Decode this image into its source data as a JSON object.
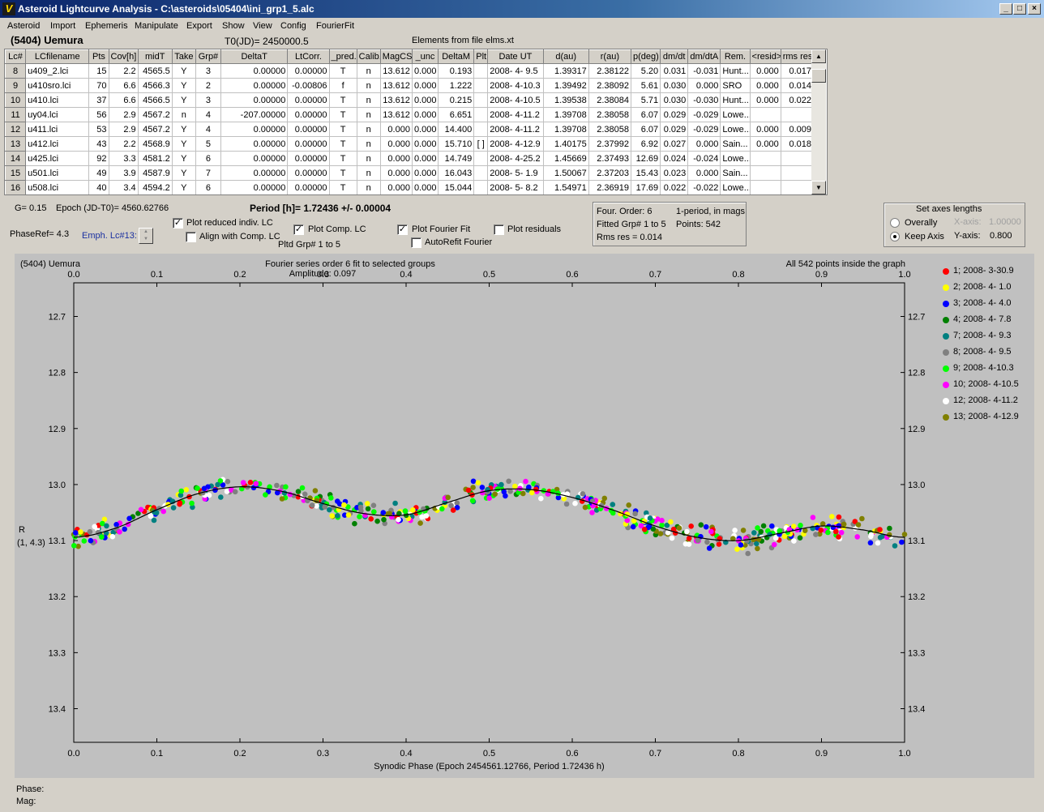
{
  "window": {
    "title": "Asteroid Lightcurve Analysis - C:\\asteroids\\05404\\ini_grp1_5.alc",
    "app_icon": "V",
    "controls": {
      "minimize": "_",
      "restore": "□",
      "close": "×"
    }
  },
  "menu": [
    "Asteroid",
    "Import",
    "Ephemeris",
    "Manipulate",
    "Export",
    "Show",
    "View",
    "Config",
    "FourierFit"
  ],
  "header": {
    "object": "(5404) Uemura",
    "t0": "T0(JD)= 2450000.5",
    "elements": "Elements from file elms.xt"
  },
  "grid": {
    "columns": [
      "Lc#",
      "LCfilename",
      "Pts",
      "Cov[h]",
      "midT",
      "Take",
      "Grp#",
      "DeltaT",
      "LtCorr.",
      "_pred.",
      "Calib.",
      "MagCS",
      "_unc",
      "DeltaM",
      "Plt",
      "Date UT",
      "d(au)",
      "r(au)",
      "p(deg)",
      "dm/dt",
      "dm/dtA",
      "Rem.",
      "<resid>",
      "rms res"
    ],
    "rows": [
      [
        "8",
        "u409_2.lci",
        "15",
        "2.2",
        "4565.5",
        "Y",
        "3",
        "0.00000",
        "0.00000",
        "T",
        "n",
        "13.612",
        "0.000",
        "0.193",
        "",
        "2008- 4- 9.5",
        "1.39317",
        "2.38122",
        "5.20",
        "0.031",
        "-0.031",
        "Hunt...",
        "0.000",
        "0.017"
      ],
      [
        "9",
        "u410sro.lci",
        "70",
        "6.6",
        "4566.3",
        "Y",
        "2",
        "0.00000",
        "-0.00806",
        "f",
        "n",
        "13.612",
        "0.000",
        "1.222",
        "",
        "2008- 4-10.3",
        "1.39492",
        "2.38092",
        "5.61",
        "0.030",
        "0.000",
        "SRO",
        "0.000",
        "0.014"
      ],
      [
        "10",
        "u410.lci",
        "37",
        "6.6",
        "4566.5",
        "Y",
        "3",
        "0.00000",
        "0.00000",
        "T",
        "n",
        "13.612",
        "0.000",
        "0.215",
        "",
        "2008- 4-10.5",
        "1.39538",
        "2.38084",
        "5.71",
        "0.030",
        "-0.030",
        "Hunt...",
        "0.000",
        "0.022"
      ],
      [
        "11",
        "uy04.lci",
        "56",
        "2.9",
        "4567.2",
        "n",
        "4",
        "-207.00000",
        "0.00000",
        "T",
        "n",
        "13.612",
        "0.000",
        "6.651",
        "",
        "2008- 4-11.2",
        "1.39708",
        "2.38058",
        "6.07",
        "0.029",
        "-0.029",
        "Lowe...",
        "",
        ""
      ],
      [
        "12",
        "u411.lci",
        "53",
        "2.9",
        "4567.2",
        "Y",
        "4",
        "0.00000",
        "0.00000",
        "T",
        "n",
        "0.000",
        "0.000",
        "14.400",
        "",
        "2008- 4-11.2",
        "1.39708",
        "2.38058",
        "6.07",
        "0.029",
        "-0.029",
        "Lowe...",
        "0.000",
        "0.009"
      ],
      [
        "13",
        "u412.lci",
        "43",
        "2.2",
        "4568.9",
        "Y",
        "5",
        "0.00000",
        "0.00000",
        "T",
        "n",
        "0.000",
        "0.000",
        "15.710",
        "[ ]",
        "2008- 4-12.9",
        "1.40175",
        "2.37992",
        "6.92",
        "0.027",
        "0.000",
        "Sain...",
        "0.000",
        "0.018"
      ],
      [
        "14",
        "u425.lci",
        "92",
        "3.3",
        "4581.2",
        "Y",
        "6",
        "0.00000",
        "0.00000",
        "T",
        "n",
        "0.000",
        "0.000",
        "14.749",
        "",
        "2008- 4-25.2",
        "1.45669",
        "2.37493",
        "12.69",
        "0.024",
        "-0.024",
        "Lowe...",
        "",
        ""
      ],
      [
        "15",
        "u501.lci",
        "49",
        "3.9",
        "4587.9",
        "Y",
        "7",
        "0.00000",
        "0.00000",
        "T",
        "n",
        "0.000",
        "0.000",
        "16.043",
        "",
        "2008- 5- 1.9",
        "1.50067",
        "2.37203",
        "15.43",
        "0.023",
        "0.000",
        "Sain...",
        "",
        ""
      ],
      [
        "16",
        "u508.lci",
        "40",
        "3.4",
        "4594.2",
        "Y",
        "6",
        "0.00000",
        "0.00000",
        "T",
        "n",
        "0.000",
        "0.000",
        "15.044",
        "",
        "2008- 5- 8.2",
        "1.54971",
        "2.36919",
        "17.69",
        "0.022",
        "-0.022",
        "Lowe...",
        "",
        ""
      ]
    ]
  },
  "info": {
    "g": "G= 0.15",
    "epoch": "Epoch (JD-T0)= 4560.62766",
    "period": "Period [h]= 1.72436 +/- 0.00004",
    "phase_ref": "PhaseRef= 4.3",
    "emph_lc": "Emph. Lc#13:"
  },
  "options": {
    "plot_reduced": {
      "label": "Plot reduced indiv. LC",
      "checked": true
    },
    "align_comp": {
      "label": "Align with Comp. LC",
      "checked": false
    },
    "plot_comp": {
      "label": "Plot Comp. LC",
      "checked": true
    },
    "plotted_grp": "Pltd Grp#  1   to    5",
    "plot_fourier": {
      "label": "Plot Fourier Fit",
      "checked": true
    },
    "autorefit": {
      "label": "AutoRefit Fourier",
      "checked": false
    },
    "plot_residuals": {
      "label": "Plot residuals",
      "checked": false
    }
  },
  "fourier_box": {
    "order": "Four. Order:  6",
    "mode": "1-period, in mags",
    "fitted": "Fitted Grp# 1 to 5",
    "points": "Points: 542",
    "rms": "Rms res     = 0.014"
  },
  "axes_box": {
    "title": "Set axes lengths",
    "overally": "Overally",
    "keep_axis": "Keep Axis",
    "selected": "keep_axis",
    "x_axis_label": "X-axis:",
    "x_axis_value": "1.00000",
    "y_axis_label": "Y-axis:",
    "y_axis_value": "0.800"
  },
  "plot": {
    "object": "(5404) Uemura",
    "title": "Fourier series order 6 fit to selected groups",
    "amplitude": "Amplitude: 0.097",
    "inside": "All 542 points inside the graph",
    "ylabel": "R",
    "ylabel2": "(1, 4.3)",
    "xlabel": "Synodic Phase (Epoch 2454561.12766, Period 1.72436 h)"
  },
  "chart_data": {
    "type": "scatter",
    "x_ticks": [
      "0.0",
      "0.1",
      "0.2",
      "0.3",
      "0.4",
      "0.5",
      "0.6",
      "0.7",
      "0.8",
      "0.9",
      "1.0"
    ],
    "y_ticks": [
      "12.7",
      "12.8",
      "12.9",
      "13.0",
      "13.1",
      "13.2",
      "13.3",
      "13.4"
    ],
    "xlim": [
      0.0,
      1.0
    ],
    "ylim": [
      12.64,
      13.46
    ],
    "y_inverted": true,
    "grid": false,
    "legend_placement": "right",
    "background": "#c0c0c0",
    "fit_curve": {
      "color": "#000000",
      "x": [
        0.0,
        0.05,
        0.1,
        0.15,
        0.2,
        0.25,
        0.3,
        0.35,
        0.4,
        0.45,
        0.5,
        0.55,
        0.6,
        0.65,
        0.7,
        0.75,
        0.8,
        0.85,
        0.9,
        0.95,
        1.0
      ],
      "y": [
        13.094,
        13.078,
        13.045,
        13.016,
        13.004,
        13.012,
        13.034,
        13.052,
        13.054,
        13.032,
        13.011,
        13.009,
        13.023,
        13.046,
        13.074,
        13.094,
        13.1,
        13.087,
        13.074,
        13.081,
        13.094
      ]
    },
    "series": [
      {
        "name": "1; 2008- 3-30.9",
        "color": "#ff0000"
      },
      {
        "name": "2; 2008- 4- 1.0",
        "color": "#ffff00"
      },
      {
        "name": "3; 2008- 4- 4.0",
        "color": "#0000ff"
      },
      {
        "name": "4; 2008- 4- 7.8",
        "color": "#008000"
      },
      {
        "name": "7; 2008- 4- 9.3",
        "color": "#008080"
      },
      {
        "name": "8; 2008- 4- 9.5",
        "color": "#808080"
      },
      {
        "name": "9; 2008- 4-10.3",
        "color": "#00ff00"
      },
      {
        "name": "10; 2008- 4-10.5",
        "color": "#ff00ff"
      },
      {
        "name": "12; 2008- 4-11.2",
        "color": "#ffffff"
      },
      {
        "name": "13; 2008- 4-12.9",
        "color": "#808000"
      }
    ],
    "points_total": 542
  },
  "status": {
    "phase": "Phase:",
    "mag": "Mag:"
  }
}
